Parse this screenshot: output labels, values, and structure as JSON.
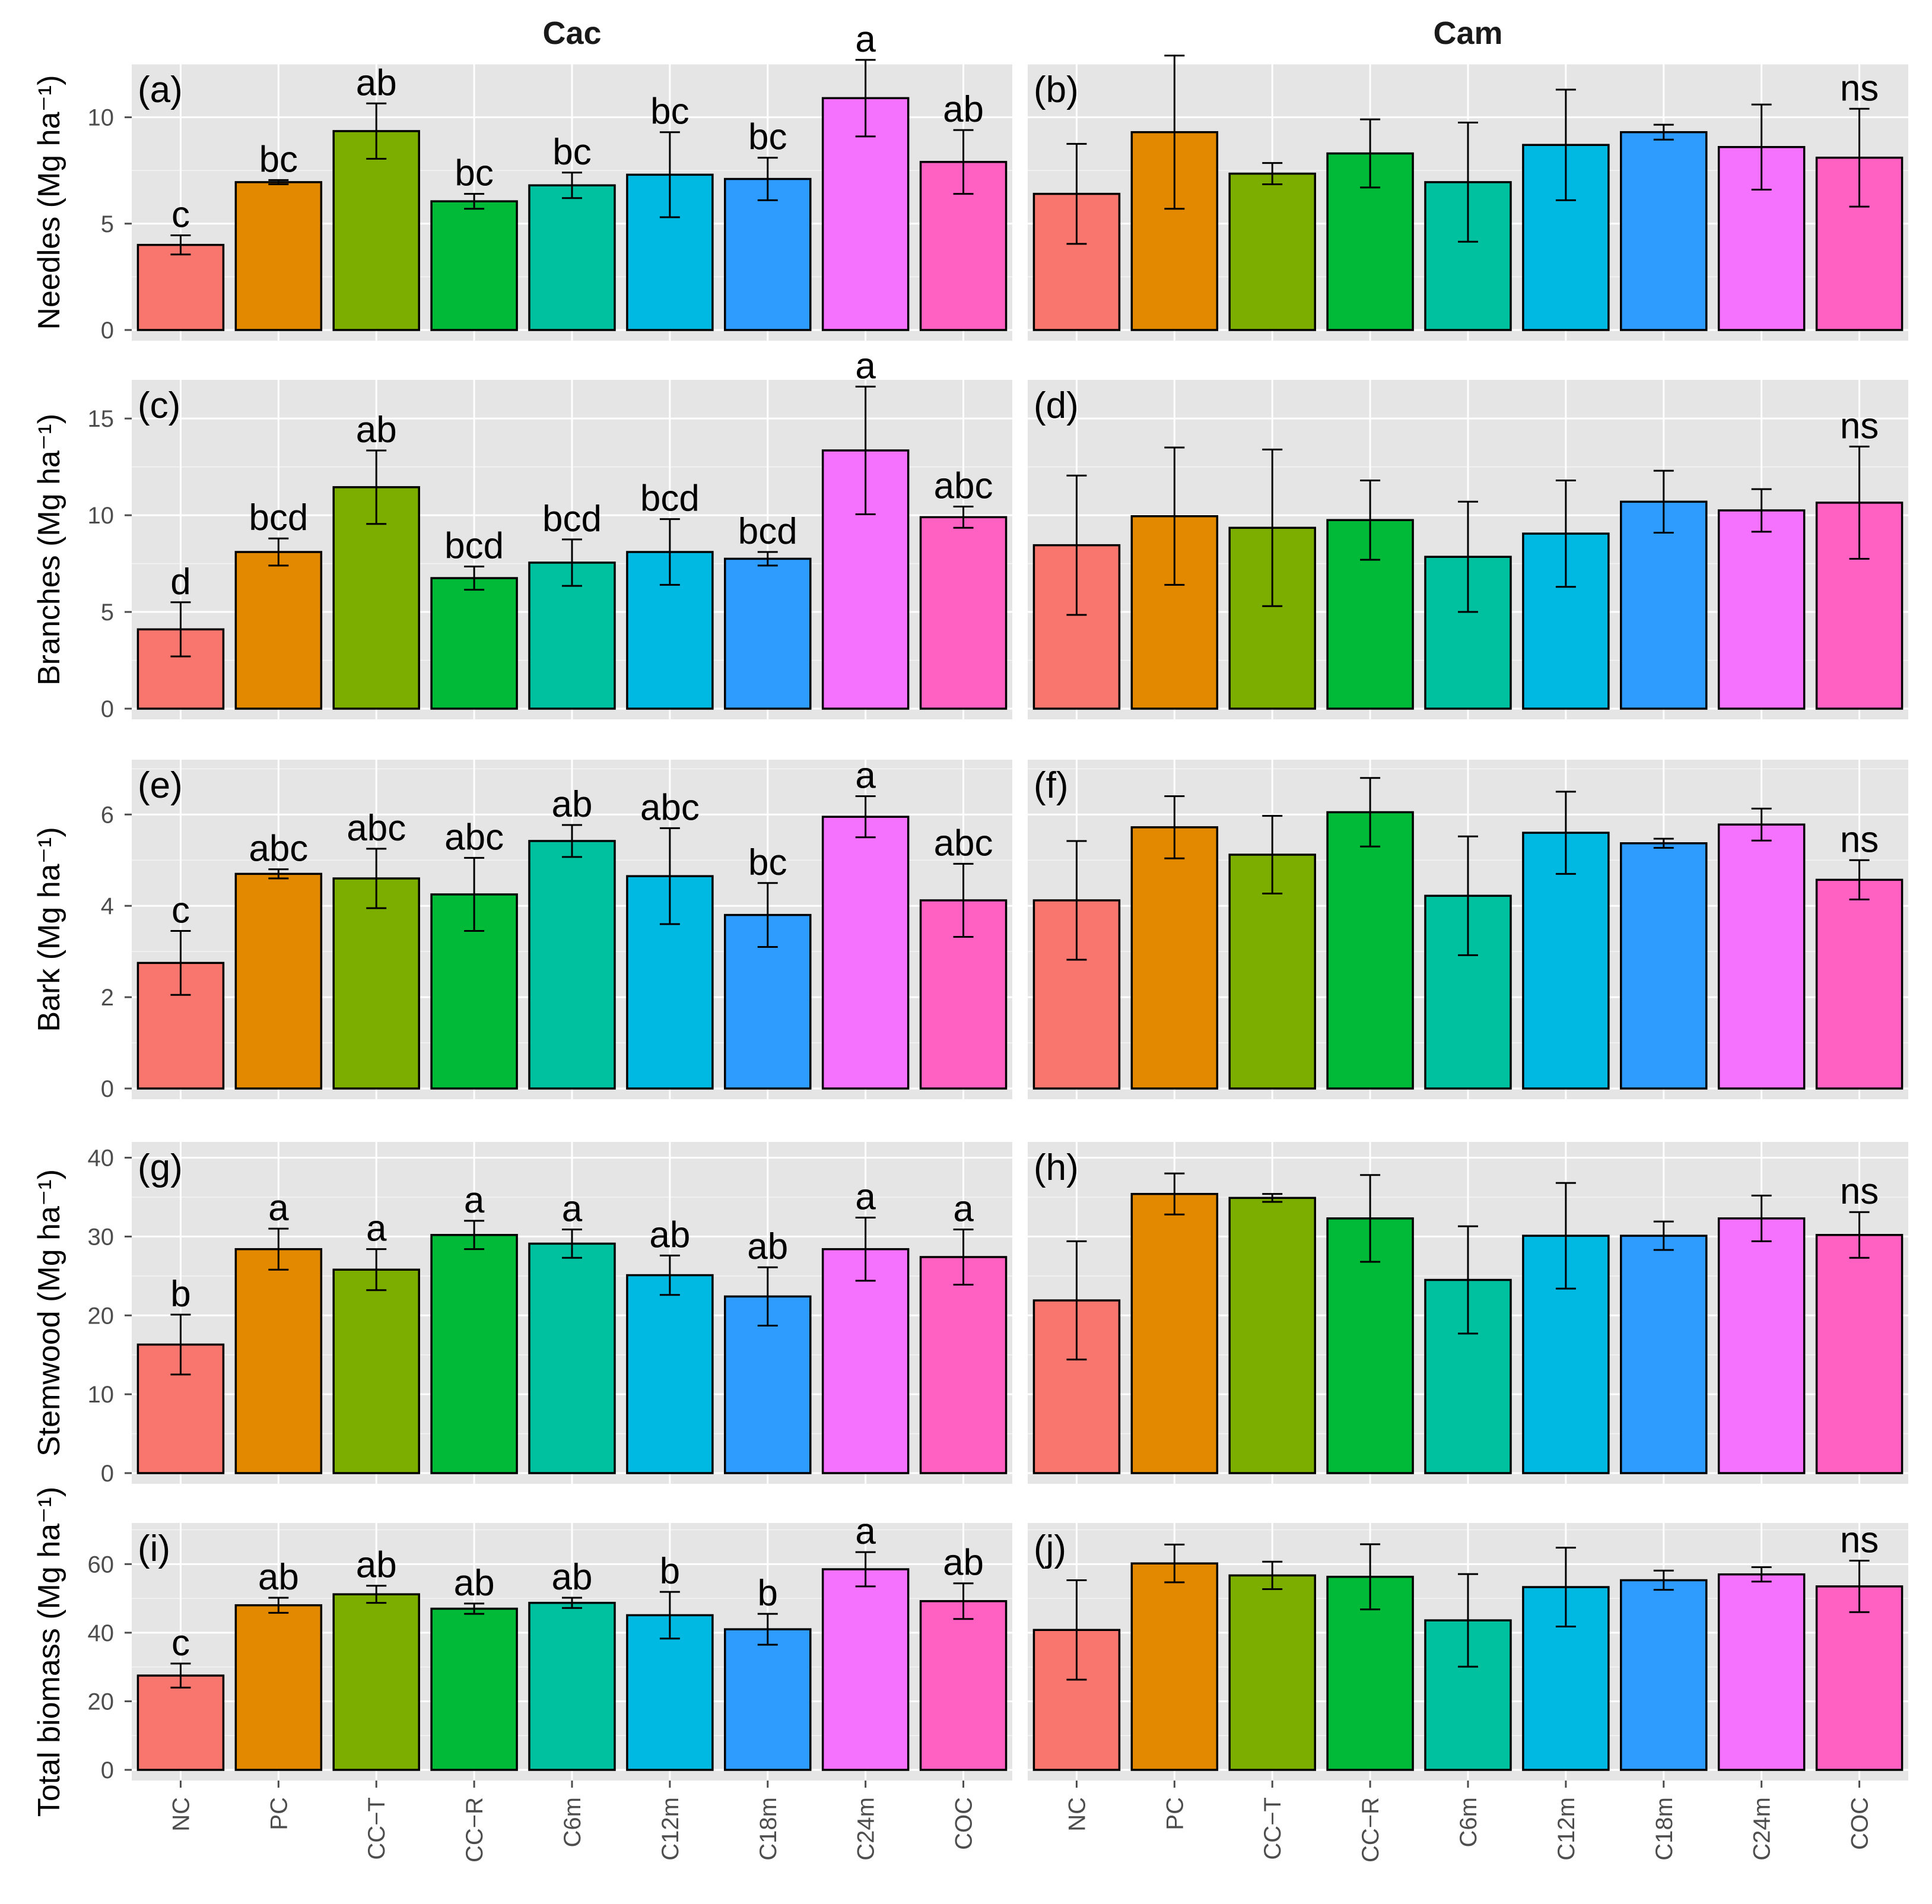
{
  "figure": {
    "column_titles": [
      "Cac",
      "Cam"
    ],
    "categories": [
      "NC",
      "PC",
      "CC−T",
      "CC−R",
      "C6m",
      "C12m",
      "C18m",
      "C24m",
      "COC"
    ],
    "colors": [
      "#F8766D",
      "#E38900",
      "#7CAE00",
      "#00BA38",
      "#00C19F",
      "#00B9E3",
      "#2E9BFF",
      "#F472FF",
      "#FF61C3"
    ],
    "panel_background": "#E5E5E5",
    "gridline_color": "#FFFFFF"
  },
  "chart_data": [
    {
      "type": "bar",
      "panel": "(a)",
      "column": "Cac",
      "row": 0,
      "ylabel": "Needles (Mg ha⁻¹)",
      "ylim": [
        0,
        12.5
      ],
      "yticks": [
        0,
        5,
        10
      ],
      "values": [
        4.0,
        6.95,
        9.35,
        6.05,
        6.8,
        7.3,
        7.1,
        10.9,
        7.9
      ],
      "errors": [
        0.45,
        0.1,
        1.3,
        0.35,
        0.6,
        2.0,
        1.0,
        1.8,
        1.5
      ],
      "letters": [
        "c",
        "bc",
        "ab",
        "bc",
        "bc",
        "bc",
        "bc",
        "a",
        "ab"
      ]
    },
    {
      "type": "bar",
      "panel": "(b)",
      "column": "Cam",
      "row": 0,
      "ylabel": "Needles (Mg ha⁻¹)",
      "ylim": [
        0,
        12.5
      ],
      "yticks": [
        0,
        5,
        10
      ],
      "values": [
        6.4,
        9.3,
        7.35,
        8.3,
        6.95,
        8.7,
        9.3,
        8.6,
        8.1
      ],
      "errors": [
        2.35,
        3.6,
        0.5,
        1.6,
        2.8,
        2.6,
        0.35,
        2.0,
        2.3
      ],
      "letters": [
        "",
        "",
        "",
        "",
        "",
        "",
        "",
        "",
        "ns"
      ]
    },
    {
      "type": "bar",
      "panel": "(c)",
      "column": "Cac",
      "row": 1,
      "ylabel": "Branches (Mg ha⁻¹)",
      "ylim": [
        0,
        17
      ],
      "yticks": [
        0,
        5,
        10,
        15
      ],
      "values": [
        4.1,
        8.1,
        11.45,
        6.75,
        7.55,
        8.1,
        7.75,
        13.35,
        9.9
      ],
      "errors": [
        1.4,
        0.7,
        1.9,
        0.6,
        1.2,
        1.7,
        0.35,
        3.3,
        0.55
      ],
      "letters": [
        "d",
        "bcd",
        "ab",
        "bcd",
        "bcd",
        "bcd",
        "bcd",
        "a",
        "abc"
      ]
    },
    {
      "type": "bar",
      "panel": "(d)",
      "column": "Cam",
      "row": 1,
      "ylabel": "Branches (Mg ha⁻¹)",
      "ylim": [
        0,
        17
      ],
      "yticks": [
        0,
        5,
        10,
        15
      ],
      "values": [
        8.45,
        9.95,
        9.35,
        9.75,
        7.85,
        9.05,
        10.7,
        10.25,
        10.65
      ],
      "errors": [
        3.6,
        3.55,
        4.05,
        2.05,
        2.85,
        2.75,
        1.6,
        1.1,
        2.9
      ],
      "letters": [
        "",
        "",
        "",
        "",
        "",
        "",
        "",
        "",
        "ns"
      ]
    },
    {
      "type": "bar",
      "panel": "(e)",
      "column": "Cac",
      "row": 2,
      "ylabel": "Bark (Mg ha⁻¹)",
      "ylim": [
        0,
        7.2
      ],
      "yticks": [
        0,
        2,
        4,
        6
      ],
      "values": [
        2.75,
        4.7,
        4.6,
        4.25,
        5.42,
        4.65,
        3.8,
        5.95,
        4.12
      ],
      "errors": [
        0.7,
        0.1,
        0.65,
        0.8,
        0.35,
        1.05,
        0.7,
        0.45,
        0.8
      ],
      "letters": [
        "c",
        "abc",
        "abc",
        "abc",
        "ab",
        "abc",
        "bc",
        "a",
        "abc"
      ]
    },
    {
      "type": "bar",
      "panel": "(f)",
      "column": "Cam",
      "row": 2,
      "ylabel": "Bark (Mg ha⁻¹)",
      "ylim": [
        0,
        7.2
      ],
      "yticks": [
        0,
        2,
        4,
        6
      ],
      "values": [
        4.12,
        5.72,
        5.12,
        6.05,
        4.22,
        5.6,
        5.37,
        5.78,
        4.57
      ],
      "errors": [
        1.3,
        0.68,
        0.85,
        0.75,
        1.3,
        0.9,
        0.1,
        0.35,
        0.43
      ],
      "letters": [
        "",
        "",
        "",
        "",
        "",
        "",
        "",
        "",
        "ns"
      ]
    },
    {
      "type": "bar",
      "panel": "(g)",
      "column": "Cac",
      "row": 3,
      "ylabel": "Stemwood (Mg ha⁻¹)",
      "ylim": [
        0,
        42
      ],
      "yticks": [
        0,
        10,
        20,
        30,
        40
      ],
      "values": [
        16.3,
        28.4,
        25.8,
        30.2,
        29.1,
        25.1,
        22.4,
        28.4,
        27.4
      ],
      "errors": [
        3.8,
        2.6,
        2.6,
        1.8,
        1.8,
        2.5,
        3.7,
        4.0,
        3.5
      ],
      "letters": [
        "b",
        "a",
        "a",
        "a",
        "a",
        "ab",
        "ab",
        "a",
        "a"
      ]
    },
    {
      "type": "bar",
      "panel": "(h)",
      "column": "Cam",
      "row": 3,
      "ylabel": "Stemwood (Mg ha⁻¹)",
      "ylim": [
        0,
        42
      ],
      "yticks": [
        0,
        10,
        20,
        30,
        40
      ],
      "values": [
        21.9,
        35.4,
        34.9,
        32.3,
        24.5,
        30.1,
        30.1,
        32.3,
        30.2
      ],
      "errors": [
        7.5,
        2.6,
        0.5,
        5.5,
        6.8,
        6.7,
        1.8,
        2.9,
        2.9
      ],
      "letters": [
        "",
        "",
        "",
        "",
        "",
        "",
        "",
        "",
        "ns"
      ]
    },
    {
      "type": "bar",
      "panel": "(i)",
      "column": "Cac",
      "row": 4,
      "ylabel": "Total biomass (Mg ha⁻¹)",
      "ylim": [
        0,
        72
      ],
      "yticks": [
        0,
        20,
        40,
        60
      ],
      "values": [
        27.5,
        48.0,
        51.2,
        47.0,
        48.7,
        45.1,
        41.0,
        58.5,
        49.2
      ],
      "errors": [
        3.5,
        2.2,
        2.5,
        1.5,
        1.5,
        6.8,
        4.5,
        5.0,
        5.2
      ],
      "letters": [
        "c",
        "ab",
        "ab",
        "ab",
        "ab",
        "b",
        "b",
        "a",
        "ab"
      ]
    },
    {
      "type": "bar",
      "panel": "(j)",
      "column": "Cam",
      "row": 4,
      "ylabel": "Total biomass (Mg ha⁻¹)",
      "ylim": [
        0,
        72
      ],
      "yticks": [
        0,
        20,
        40,
        60
      ],
      "values": [
        40.8,
        60.2,
        56.7,
        56.3,
        43.6,
        53.3,
        55.3,
        57.0,
        53.5
      ],
      "errors": [
        14.5,
        5.5,
        4.0,
        9.5,
        13.5,
        11.5,
        2.8,
        2.1,
        7.5
      ],
      "letters": [
        "",
        "",
        "",
        "",
        "",
        "",
        "",
        "",
        "ns"
      ]
    }
  ]
}
